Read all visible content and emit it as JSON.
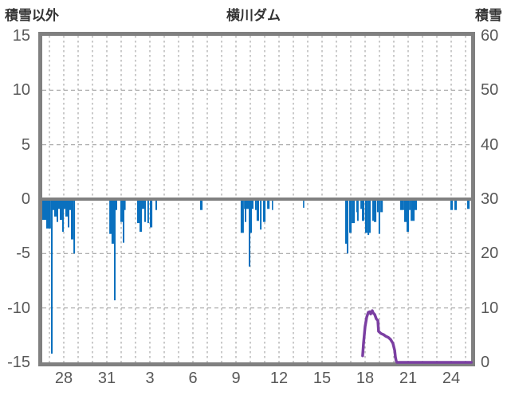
{
  "header": {
    "left_axis_title": "積雪以外",
    "title": "横川ダム",
    "right_axis_title": "積雪"
  },
  "colors": {
    "bar_blue": "#0a70be",
    "line_purple": "#7b3fa2",
    "axis_gray": "#808080",
    "grid_gray": "#a6a6a6",
    "text_dark": "#333333",
    "tick_text": "#585858"
  },
  "chart_data": {
    "type": "bar+line",
    "title": "横川ダム",
    "left_axis": {
      "title": "積雪以外",
      "tick_labels": [
        "15",
        "10",
        "5",
        "0",
        "-5",
        "-10",
        "-15"
      ],
      "tick_values": [
        15,
        10,
        5,
        0,
        -5,
        -10,
        -15
      ],
      "range": [
        -15,
        15
      ]
    },
    "right_axis": {
      "title": "積雪",
      "tick_labels": [
        "60",
        "50",
        "40",
        "30",
        "20",
        "10",
        "0"
      ],
      "tick_values": [
        60,
        50,
        40,
        30,
        20,
        10,
        0
      ],
      "range": [
        0,
        60
      ]
    },
    "x_axis": {
      "tick_labels": [
        "28",
        "31",
        "3",
        "6",
        "9",
        "12",
        "15",
        "18",
        "21",
        "24"
      ],
      "tick_offsets_days": [
        1.5,
        4.5,
        7.5,
        10.5,
        13.5,
        16.5,
        19.5,
        22.5,
        25.5,
        28.5
      ],
      "span_days": 29.9,
      "grid_every_days": 1
    },
    "grid": {
      "h_line_values_left_axis": [
        10,
        5,
        -5,
        -10
      ],
      "style": "dashed"
    },
    "bars_series": {
      "name": "積雪以外",
      "color": "#0a70be",
      "note": "values are depths below 0 on the left axis (plotted downward)",
      "points": [
        [
          0.0,
          0.28,
          1.9
        ],
        [
          0.28,
          0.33,
          2.7
        ],
        [
          0.61,
          0.11,
          14.2
        ],
        [
          0.72,
          0.11,
          1.0
        ],
        [
          0.83,
          0.17,
          1.6
        ],
        [
          1.0,
          0.11,
          2.1
        ],
        [
          1.11,
          0.11,
          0.9
        ],
        [
          1.22,
          0.17,
          1.9
        ],
        [
          1.39,
          0.11,
          3.0
        ],
        [
          1.5,
          0.11,
          0.9
        ],
        [
          1.61,
          0.17,
          1.6
        ],
        [
          1.78,
          0.11,
          2.6
        ],
        [
          1.89,
          0.11,
          1.0
        ],
        [
          2.0,
          0.17,
          3.7
        ],
        [
          2.17,
          0.11,
          5.0
        ],
        [
          4.67,
          0.17,
          3.2
        ],
        [
          4.83,
          0.17,
          4.1
        ],
        [
          5.0,
          0.11,
          9.3
        ],
        [
          5.11,
          0.11,
          1.0
        ],
        [
          5.44,
          0.17,
          2.1
        ],
        [
          5.61,
          0.11,
          4.0
        ],
        [
          5.72,
          0.06,
          1.0
        ],
        [
          6.61,
          0.17,
          2.2
        ],
        [
          6.78,
          0.17,
          3.0
        ],
        [
          6.94,
          0.17,
          0.9
        ],
        [
          7.11,
          0.11,
          2.1
        ],
        [
          7.33,
          0.11,
          2.2
        ],
        [
          7.5,
          0.17,
          2.6
        ],
        [
          7.89,
          0.11,
          1.0
        ],
        [
          11.0,
          0.17,
          1.0
        ],
        [
          13.83,
          0.22,
          3.1
        ],
        [
          14.06,
          0.06,
          0.9
        ],
        [
          14.11,
          0.11,
          2.1
        ],
        [
          14.22,
          0.17,
          0.9
        ],
        [
          14.39,
          0.11,
          6.2
        ],
        [
          14.5,
          0.11,
          3.1
        ],
        [
          14.61,
          0.11,
          0.9
        ],
        [
          14.83,
          0.11,
          1.0
        ],
        [
          14.94,
          0.17,
          2.0
        ],
        [
          15.17,
          0.11,
          2.8
        ],
        [
          15.39,
          0.17,
          2.1
        ],
        [
          15.67,
          0.17,
          0.9
        ],
        [
          16.0,
          0.06,
          1.0
        ],
        [
          18.17,
          0.08,
          0.8
        ],
        [
          21.11,
          0.11,
          4.1
        ],
        [
          21.22,
          0.11,
          5.0
        ],
        [
          21.39,
          0.17,
          3.1
        ],
        [
          21.56,
          0.22,
          2.2
        ],
        [
          21.89,
          0.06,
          1.2
        ],
        [
          21.94,
          0.11,
          2.0
        ],
        [
          22.17,
          0.11,
          0.9
        ],
        [
          22.28,
          0.17,
          2.0
        ],
        [
          22.5,
          0.17,
          3.1
        ],
        [
          22.67,
          0.11,
          3.3
        ],
        [
          22.78,
          0.11,
          3.1
        ],
        [
          23.0,
          0.11,
          2.0
        ],
        [
          23.11,
          0.17,
          2.1
        ],
        [
          23.33,
          0.11,
          1.2
        ],
        [
          23.44,
          0.11,
          3.2
        ],
        [
          23.56,
          0.17,
          1.2
        ],
        [
          24.94,
          0.28,
          1.0
        ],
        [
          25.22,
          0.17,
          2.1
        ],
        [
          25.39,
          0.17,
          3.0
        ],
        [
          25.56,
          0.11,
          1.0
        ],
        [
          25.67,
          0.28,
          2.0
        ],
        [
          25.94,
          0.17,
          1.0
        ],
        [
          28.44,
          0.17,
          1.0
        ],
        [
          28.72,
          0.17,
          1.0
        ],
        [
          29.61,
          0.17,
          0.9
        ]
      ]
    },
    "line_series": {
      "name": "積雪",
      "color": "#7b3fa2",
      "axis": "right",
      "points": [
        [
          22.33,
          1.2
        ],
        [
          22.39,
          3.5
        ],
        [
          22.5,
          6.6
        ],
        [
          22.61,
          8.3
        ],
        [
          22.72,
          9.2
        ],
        [
          22.83,
          9.3
        ],
        [
          22.89,
          8.9
        ],
        [
          23.0,
          9.5
        ],
        [
          23.06,
          9.1
        ],
        [
          23.17,
          8.8
        ],
        [
          23.28,
          8.0
        ],
        [
          23.39,
          7.7
        ],
        [
          23.44,
          5.7
        ],
        [
          23.61,
          5.3
        ],
        [
          23.78,
          5.1
        ],
        [
          23.94,
          4.8
        ],
        [
          24.11,
          4.6
        ],
        [
          24.28,
          4.2
        ],
        [
          24.44,
          3.5
        ],
        [
          24.56,
          2.2
        ],
        [
          24.61,
          1.0
        ],
        [
          24.67,
          0.2
        ],
        [
          24.72,
          0.0
        ],
        [
          29.9,
          0.0
        ]
      ]
    }
  }
}
